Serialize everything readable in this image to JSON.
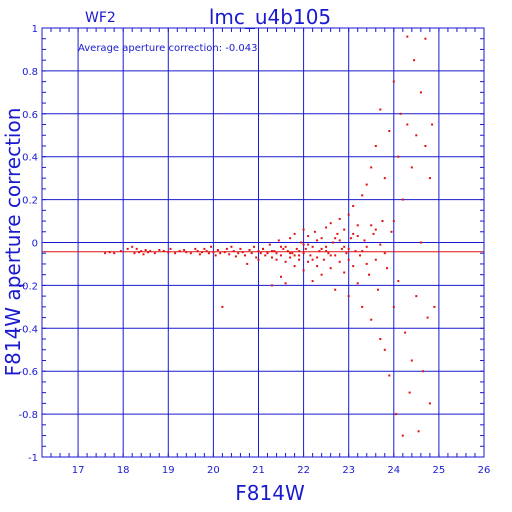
{
  "chart_data": {
    "type": "scatter",
    "title": "lmc_u4b105",
    "panel_label": "WF2",
    "annotation": "Average aperture correction: -0.043",
    "xlabel": "F814W",
    "ylabel": "F814W aperture correction",
    "xlim": [
      16.2,
      26
    ],
    "ylim": [
      -1,
      1
    ],
    "x_ticks": [
      "17",
      "18",
      "19",
      "20",
      "21",
      "22",
      "23",
      "24",
      "25",
      "26"
    ],
    "y_ticks": [
      "1",
      "0.8",
      "0.6",
      "0.4",
      "0.2",
      "0",
      "-0.2",
      "-0.4",
      "-0.6",
      "-0.8",
      "-1"
    ],
    "grid": true,
    "reference_lines": [
      {
        "name": "zero",
        "y": 0,
        "color": "#1a1ad0"
      },
      {
        "name": "average",
        "y": -0.043,
        "color": "#e01010"
      }
    ],
    "colors": {
      "axes": "#1a1ad0",
      "points": "#e01010"
    },
    "series": [
      {
        "points": [
          [
            17.6,
            -0.05
          ],
          [
            17.7,
            -0.045
          ],
          [
            17.8,
            -0.05
          ],
          [
            17.95,
            -0.04
          ],
          [
            18.1,
            -0.03
          ],
          [
            18.2,
            -0.02
          ],
          [
            18.25,
            -0.05
          ],
          [
            18.3,
            -0.03
          ],
          [
            18.35,
            -0.045
          ],
          [
            18.4,
            -0.04
          ],
          [
            18.45,
            -0.055
          ],
          [
            18.5,
            -0.035
          ],
          [
            18.55,
            -0.045
          ],
          [
            18.6,
            -0.04
          ],
          [
            18.7,
            -0.05
          ],
          [
            18.8,
            -0.035
          ],
          [
            18.9,
            -0.04
          ],
          [
            19.0,
            -0.045
          ],
          [
            19.05,
            -0.03
          ],
          [
            19.15,
            -0.05
          ],
          [
            19.25,
            -0.04
          ],
          [
            19.35,
            -0.035
          ],
          [
            19.4,
            -0.045
          ],
          [
            19.5,
            -0.05
          ],
          [
            19.6,
            -0.03
          ],
          [
            19.65,
            -0.04
          ],
          [
            19.7,
            -0.055
          ],
          [
            19.75,
            -0.045
          ],
          [
            19.8,
            -0.03
          ],
          [
            19.85,
            -0.04
          ],
          [
            19.9,
            -0.05
          ],
          [
            19.95,
            -0.02
          ],
          [
            20.0,
            -0.045
          ],
          [
            20.05,
            -0.06
          ],
          [
            20.1,
            -0.035
          ],
          [
            20.15,
            -0.05
          ],
          [
            20.2,
            -0.3
          ],
          [
            20.25,
            -0.045
          ],
          [
            20.3,
            -0.03
          ],
          [
            20.35,
            -0.055
          ],
          [
            20.4,
            -0.02
          ],
          [
            20.45,
            -0.04
          ],
          [
            20.5,
            -0.065
          ],
          [
            20.55,
            -0.05
          ],
          [
            20.6,
            -0.03
          ],
          [
            20.65,
            -0.045
          ],
          [
            20.7,
            -0.06
          ],
          [
            20.75,
            -0.1
          ],
          [
            20.8,
            -0.035
          ],
          [
            20.85,
            -0.05
          ],
          [
            20.9,
            -0.02
          ],
          [
            20.95,
            -0.07
          ],
          [
            21.0,
            -0.04
          ],
          [
            21.0,
            -0.08
          ],
          [
            21.05,
            -0.05
          ],
          [
            21.1,
            -0.03
          ],
          [
            21.15,
            -0.06
          ],
          [
            21.2,
            -0.045
          ],
          [
            21.25,
            -0.01
          ],
          [
            21.3,
            -0.07
          ],
          [
            21.3,
            -0.2
          ],
          [
            21.35,
            -0.04
          ],
          [
            21.4,
            -0.05
          ],
          [
            21.45,
            0.01
          ],
          [
            21.5,
            -0.06
          ],
          [
            21.5,
            -0.16
          ],
          [
            21.55,
            -0.03
          ],
          [
            21.6,
            -0.09
          ],
          [
            21.6,
            -0.19
          ],
          [
            21.65,
            -0.04
          ],
          [
            21.7,
            0.02
          ],
          [
            21.7,
            -0.07
          ],
          [
            21.75,
            -0.05
          ],
          [
            21.8,
            -0.11
          ],
          [
            21.8,
            0.04
          ],
          [
            21.85,
            -0.03
          ],
          [
            21.9,
            -0.06
          ],
          [
            21.9,
            -0.08
          ],
          [
            21.95,
            0.0
          ],
          [
            22.0,
            -0.05
          ],
          [
            22.0,
            -0.13
          ],
          [
            22.0,
            0.06
          ],
          [
            22.05,
            -0.03
          ],
          [
            22.1,
            -0.09
          ],
          [
            22.1,
            0.03
          ],
          [
            22.15,
            -0.06
          ],
          [
            22.2,
            -0.02
          ],
          [
            22.2,
            -0.18
          ],
          [
            22.25,
            0.05
          ],
          [
            22.3,
            -0.07
          ],
          [
            22.3,
            -0.11
          ],
          [
            22.35,
            -0.04
          ],
          [
            22.4,
            0.02
          ],
          [
            22.4,
            -0.15
          ],
          [
            22.45,
            -0.08
          ],
          [
            22.5,
            0.07
          ],
          [
            22.5,
            -0.02
          ],
          [
            22.55,
            -0.05
          ],
          [
            22.6,
            0.09
          ],
          [
            22.6,
            -0.12
          ],
          [
            22.65,
            0.0
          ],
          [
            22.7,
            -0.06
          ],
          [
            22.7,
            -0.22
          ],
          [
            22.75,
            0.04
          ],
          [
            22.8,
            -0.09
          ],
          [
            22.8,
            0.11
          ],
          [
            22.85,
            -0.03
          ],
          [
            22.9,
            0.06
          ],
          [
            22.9,
            -0.14
          ],
          [
            22.95,
            -0.05
          ],
          [
            23.0,
            0.13
          ],
          [
            23.0,
            -0.08
          ],
          [
            23.0,
            -0.25
          ],
          [
            23.05,
            0.02
          ],
          [
            23.1,
            -0.11
          ],
          [
            23.1,
            0.17
          ],
          [
            23.15,
            -0.04
          ],
          [
            23.2,
            0.08
          ],
          [
            23.2,
            -0.19
          ],
          [
            23.25,
            -0.06
          ],
          [
            23.3,
            0.22
          ],
          [
            23.3,
            -0.3
          ],
          [
            23.35,
            0.01
          ],
          [
            23.4,
            -0.1
          ],
          [
            23.4,
            0.27
          ],
          [
            23.45,
            -0.15
          ],
          [
            23.5,
            0.35
          ],
          [
            23.5,
            -0.36
          ],
          [
            23.55,
            0.04
          ],
          [
            23.6,
            -0.08
          ],
          [
            23.6,
            0.45
          ],
          [
            23.65,
            -0.22
          ],
          [
            23.7,
            0.62
          ],
          [
            23.7,
            -0.45
          ],
          [
            23.75,
            0.1
          ],
          [
            23.8,
            -0.5
          ],
          [
            23.8,
            0.3
          ],
          [
            23.85,
            -0.12
          ],
          [
            23.9,
            0.52
          ],
          [
            23.9,
            -0.62
          ],
          [
            23.95,
            0.05
          ],
          [
            24.0,
            -0.3
          ],
          [
            24.0,
            0.75
          ],
          [
            24.05,
            -0.8
          ],
          [
            24.1,
            0.4
          ],
          [
            24.1,
            -0.18
          ],
          [
            24.15,
            0.6
          ],
          [
            24.2,
            -0.9
          ],
          [
            24.2,
            0.2
          ],
          [
            24.25,
            -0.42
          ],
          [
            24.3,
            0.96
          ],
          [
            24.3,
            0.55
          ],
          [
            24.35,
            -0.7
          ],
          [
            24.4,
            0.35
          ],
          [
            24.4,
            -0.55
          ],
          [
            24.45,
            0.85
          ],
          [
            24.5,
            -0.25
          ],
          [
            24.5,
            0.5
          ],
          [
            24.55,
            -0.88
          ],
          [
            24.6,
            0.7
          ],
          [
            24.6,
            0.0
          ],
          [
            24.65,
            -0.6
          ],
          [
            24.7,
            0.95
          ],
          [
            24.7,
            0.45
          ],
          [
            24.75,
            -0.35
          ],
          [
            24.8,
            0.3
          ],
          [
            24.8,
            -0.75
          ],
          [
            24.85,
            0.55
          ],
          [
            24.9,
            -0.3
          ],
          [
            21.2,
            -0.05
          ],
          [
            21.4,
            -0.08
          ],
          [
            21.6,
            -0.02
          ],
          [
            21.8,
            -0.06
          ],
          [
            22.0,
            -0.01
          ],
          [
            22.2,
            -0.08
          ],
          [
            22.4,
            -0.03
          ],
          [
            22.6,
            -0.06
          ],
          [
            22.8,
            0.01
          ],
          [
            23.0,
            -0.03
          ],
          [
            23.2,
            0.03
          ],
          [
            23.4,
            -0.02
          ],
          [
            23.6,
            0.06
          ],
          [
            23.8,
            -0.05
          ],
          [
            24.0,
            0.1
          ],
          [
            22.1,
            -0.01
          ],
          [
            22.3,
            0.01
          ],
          [
            22.5,
            -0.04
          ],
          [
            22.7,
            0.02
          ],
          [
            22.9,
            -0.02
          ],
          [
            23.1,
            0.04
          ],
          [
            23.3,
            -0.04
          ],
          [
            23.5,
            0.08
          ],
          [
            23.7,
            -0.01
          ],
          [
            21.1,
            -0.03
          ],
          [
            21.3,
            -0.04
          ],
          [
            21.5,
            -0.02
          ],
          [
            21.7,
            -0.05
          ],
          [
            21.9,
            -0.04
          ]
        ]
      }
    ]
  }
}
